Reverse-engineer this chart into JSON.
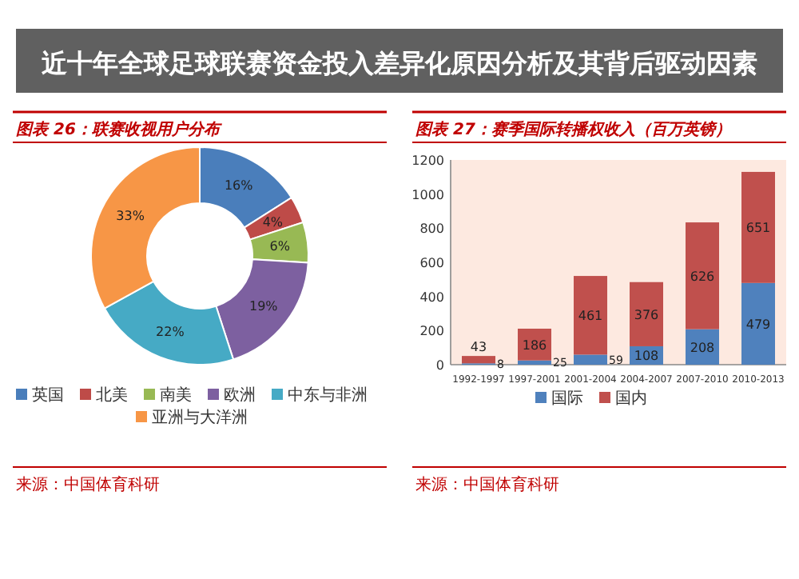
{
  "chart_data": [
    {
      "type": "donut",
      "title": "图表 26：联赛收视用户分布",
      "categories": [
        "英国",
        "北美",
        "南美",
        "欧洲",
        "中东与非洲",
        "亚洲与大洋洲"
      ],
      "values": [
        16,
        4,
        6,
        19,
        22,
        33
      ],
      "colors": [
        "#4a7ebb",
        "#be4b48",
        "#98b954",
        "#7d60a0",
        "#46aac5",
        "#f79646"
      ],
      "value_labels": [
        "16%",
        "4%",
        "6%",
        "19%",
        "22%",
        "33%"
      ],
      "legend": "bottom",
      "annotations": [
        "来源：中国体育科研"
      ]
    },
    {
      "type": "bar",
      "stacked": true,
      "title": "图表 27：赛季国际转播权收入（百万英镑）",
      "categories": [
        "1992-1997",
        "1997-2001",
        "2001-2004",
        "2004-2007",
        "2007-2010",
        "2010-2013"
      ],
      "series": [
        {
          "name": "国际",
          "color": "#4f81bd",
          "values": [
            8,
            25,
            59,
            108,
            208,
            479
          ]
        },
        {
          "name": "国内",
          "color": "#c0504d",
          "values": [
            43,
            186,
            461,
            376,
            626,
            651
          ]
        }
      ],
      "ylim": [
        0,
        1200
      ],
      "yticks": [
        0,
        200,
        400,
        600,
        800,
        1000,
        1200
      ],
      "data_labels": true,
      "legend": "bottom",
      "annotations": [
        "来源：中国体育科研"
      ]
    },
    {
      "type": "other",
      "title": "近十年全球足球联赛资金投入差异化原因分析及其背后驱动因素"
    }
  ]
}
